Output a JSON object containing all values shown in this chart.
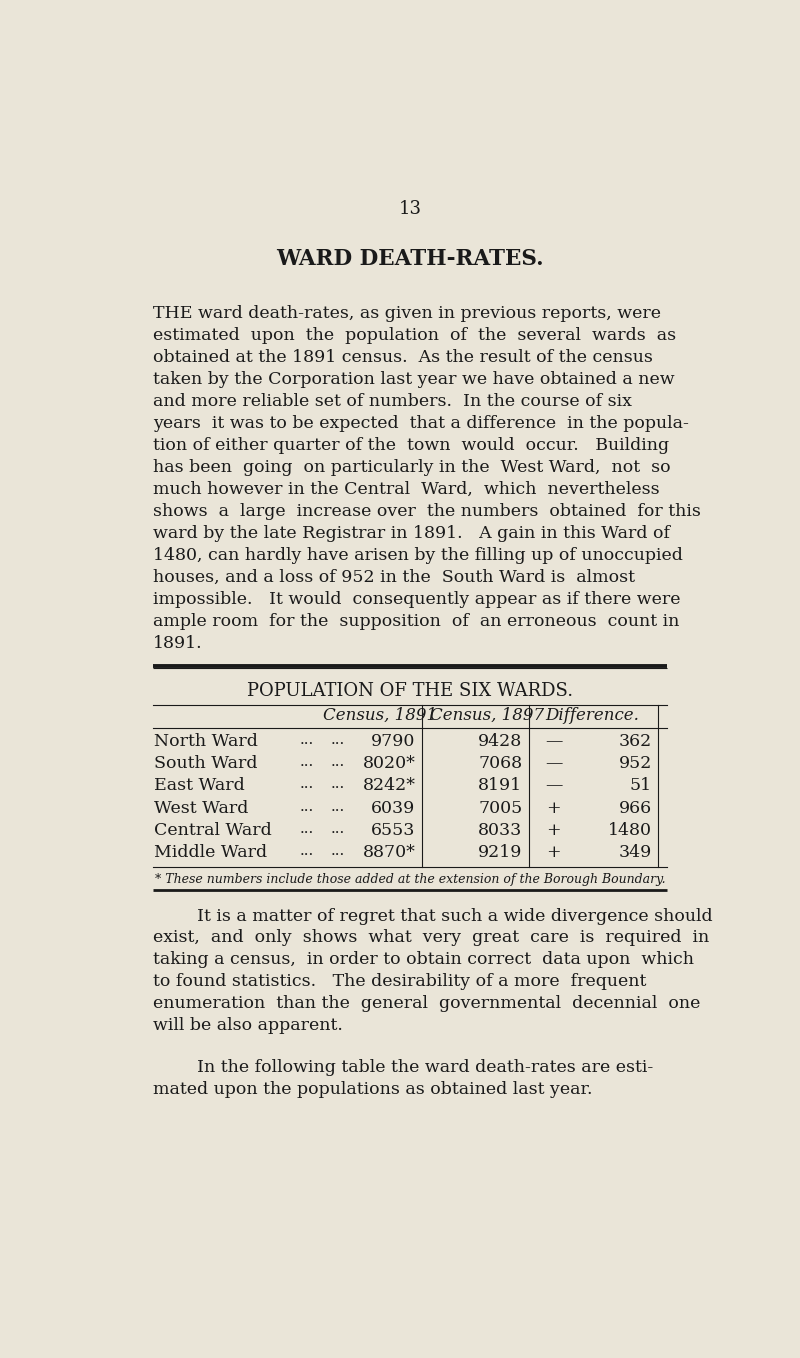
{
  "bg_color": "#eae5d8",
  "text_color": "#1a1a1a",
  "page_number": "13",
  "title": "WARD DEATH-RATES.",
  "para1_lines": [
    "THE ward death-rates, as given in previous reports, were",
    "estimated  upon  the  population  of  the  several  wards  as",
    "obtained at the 1891 census.  As the result of the census",
    "taken by the Corporation last year we have obtained a new",
    "and more reliable set of numbers.  In the course of six",
    "years  it was to be expected  that a difference  in the popula-",
    "tion of either quarter of the  town  would  occur.   Building",
    "has been  going  on particularly in the  West Ward,  not  so",
    "much however in the Central  Ward,  which  nevertheless",
    "shows  a  large  increase over  the numbers  obtained  for this",
    "ward by the late Registrar in 1891.   A gain in this Ward of",
    "1480, can hardly have arisen by the filling up of unoccupied",
    "houses, and a loss of 952 in the  South Ward is  almost",
    "impossible.   It would  consequently appear as if there were",
    "ample room  for the  supposition  of  an erroneous  count in",
    "1891."
  ],
  "table_title": "POPULATION OF THE SIX WARDS.",
  "col_header_1891": "Census, 1891",
  "col_header_1897": "Census, 1897",
  "col_header_diff": "Difference.",
  "table_rows": [
    [
      "North Ward",
      "...",
      "...",
      "9790",
      "9428",
      "—",
      "362"
    ],
    [
      "South Ward",
      "...",
      "...",
      "8020*",
      "7068",
      "—",
      "952"
    ],
    [
      "East Ward",
      "...",
      "...",
      "8242*",
      "8191",
      "—",
      "51"
    ],
    [
      "West Ward",
      "...",
      "...",
      "6039",
      "7005",
      "+",
      "966"
    ],
    [
      "Central Ward",
      "...",
      "...",
      "6553",
      "8033",
      "+",
      "1480"
    ],
    [
      "Middle Ward",
      "...",
      "...",
      "8870*",
      "9219",
      "+",
      "349"
    ]
  ],
  "footnote": "* These numbers include those added at the extension of the Borough Boundary.",
  "para2_lines": [
    "        It is a matter of regret that such a wide divergence should",
    "exist,  and  only  shows  what  very  great  care  is  required  in",
    "taking a census,  in order to obtain correct  data upon  which",
    "to found statistics.   The desirability of a more  frequent",
    "enumeration  than the  general  governmental  decennial  one",
    "will be also apparent."
  ],
  "para3_lines": [
    "        In the following table the ward death-rates are esti-",
    "mated upon the populations as obtained last year."
  ]
}
